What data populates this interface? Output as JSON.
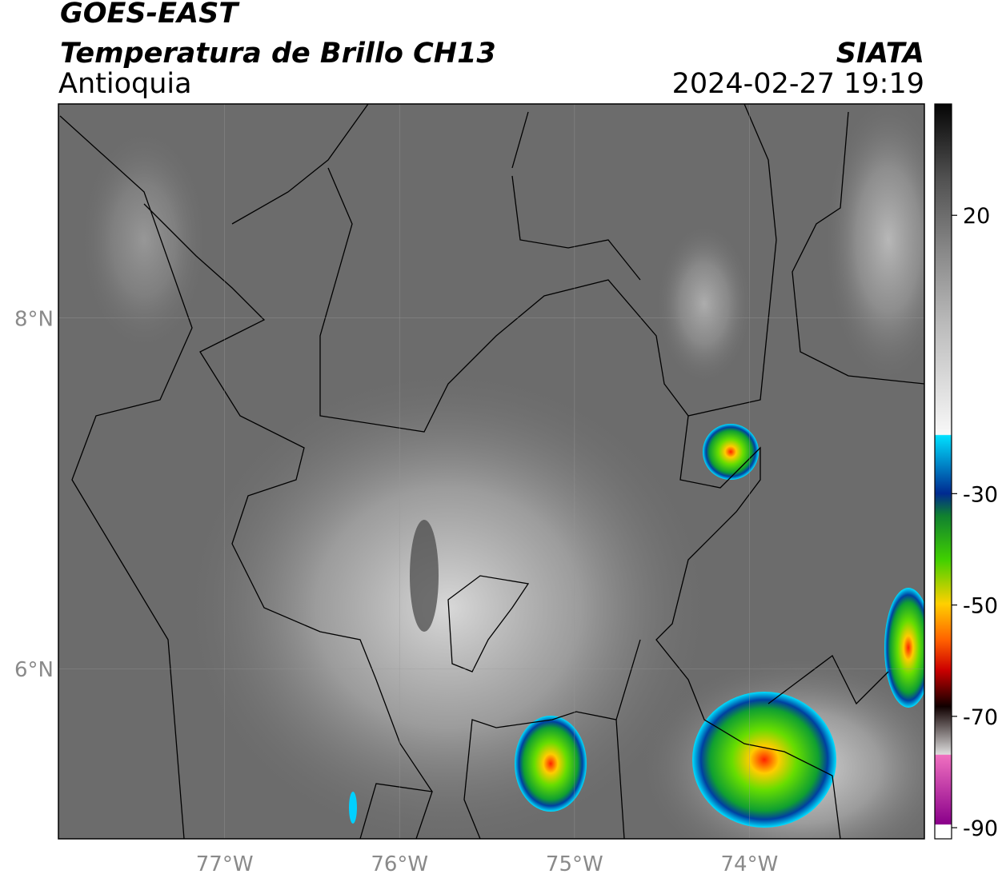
{
  "header": {
    "title": "GOES-EAST",
    "subtitle": "Temperatura de Brillo CH13",
    "region": "Antioquia",
    "source": "SIATA",
    "datetime": "2024-02-27 19:19"
  },
  "map": {
    "xlim": [
      -77.95,
      -73.0
    ],
    "ylim": [
      5.03,
      9.22
    ],
    "xticks": [
      {
        "value": -77,
        "label": "77°W"
      },
      {
        "value": -76,
        "label": "76°W"
      },
      {
        "value": -75,
        "label": "75°W"
      },
      {
        "value": -74,
        "label": "74°W"
      }
    ],
    "yticks": [
      {
        "value": 8,
        "label": "8°N"
      },
      {
        "value": 6,
        "label": "6°N"
      }
    ],
    "grid": true
  },
  "colorbar": {
    "lim": [
      -92,
      40
    ],
    "ticks": [
      20,
      -30,
      -50,
      -70,
      -90
    ]
  }
}
